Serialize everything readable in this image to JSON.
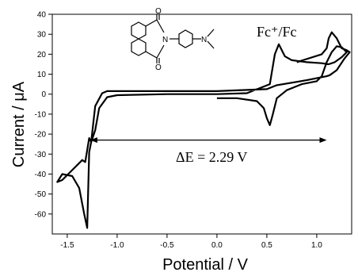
{
  "chart_data": {
    "type": "line",
    "title": "",
    "xlabel": "Potential / V",
    "ylabel": "Current / μA",
    "xlim": [
      -1.65,
      1.35
    ],
    "ylim": [
      -70,
      40
    ],
    "x_ticks": [
      -1.5,
      -1.0,
      -0.5,
      0.0,
      0.5,
      1.0
    ],
    "x_tick_labels": [
      "-1.5",
      "-1.0",
      "-0.5",
      "0.0",
      "0.5",
      "1.0"
    ],
    "y_ticks": [
      -60,
      -50,
      -40,
      -30,
      -20,
      -10,
      0,
      10,
      20,
      30,
      40
    ],
    "y_tick_labels": [
      "-60",
      "-50",
      "-40",
      "-30",
      "-20",
      "-10",
      "0",
      "10",
      "20",
      "30",
      "40"
    ],
    "grid": false,
    "legend": "none",
    "series_color": "#000000",
    "series": [
      {
        "x": [
          0.0,
          0.2,
          0.4,
          0.47,
          0.5,
          0.53,
          0.56,
          0.6,
          0.7,
          0.85,
          1.0,
          1.05,
          1.1,
          1.15,
          1.2,
          1.25,
          1.28,
          1.3,
          1.25,
          1.18,
          1.12,
          1.05,
          0.9,
          0.75,
          0.68,
          0.62,
          0.58,
          0.53,
          0.3,
          0.0,
          -0.5,
          -1.0,
          -1.1,
          -1.18,
          -1.22,
          -1.26,
          -1.28,
          -1.3,
          -1.32,
          -1.35,
          -1.45,
          -1.55,
          -1.6,
          -1.55,
          -1.45,
          -1.38,
          -1.33,
          -1.3,
          -1.28,
          -1.26,
          -1.22,
          -1.15,
          -1.1,
          -1.0,
          -0.5,
          0.0,
          0.5,
          0.6,
          0.9,
          1.0,
          1.1,
          1.13,
          1.2,
          1.28,
          1.33,
          1.3,
          1.25,
          1.2,
          1.15,
          1.12,
          1.1,
          1.05,
          0.8
        ],
        "y": [
          -2,
          -2,
          -3.5,
          -7,
          -12,
          -15.5,
          -10,
          -2,
          2,
          5,
          6.5,
          9,
          16,
          21,
          24,
          23.5,
          22,
          21,
          18.5,
          16,
          15,
          15.5,
          16,
          17,
          19,
          25,
          20,
          5,
          0.5,
          0,
          0,
          -0.5,
          -1.5,
          -7,
          -18,
          -24,
          -22,
          -28,
          -34,
          -33,
          -38,
          -43,
          -44,
          -40,
          -41,
          -47,
          -60,
          -67,
          -29,
          -24,
          -6,
          0.5,
          1.5,
          1.5,
          1.5,
          1.5,
          2.5,
          4.5,
          7,
          8,
          9,
          9.5,
          12,
          18,
          21,
          22,
          23,
          28,
          31,
          28,
          23,
          20,
          16
        ]
      }
    ],
    "annotations": [
      {
        "text": "Fc⁺/Fc",
        "type": "label",
        "near": "right peaks"
      },
      {
        "text": "ΔE = 2.29 V",
        "type": "double-arrow",
        "x_from": -1.27,
        "x_to": 1.1,
        "y": -23
      }
    ],
    "inset": {
      "type": "chemical-structure",
      "atom_labels": [
        "O",
        "O",
        "N",
        "N"
      ]
    }
  }
}
